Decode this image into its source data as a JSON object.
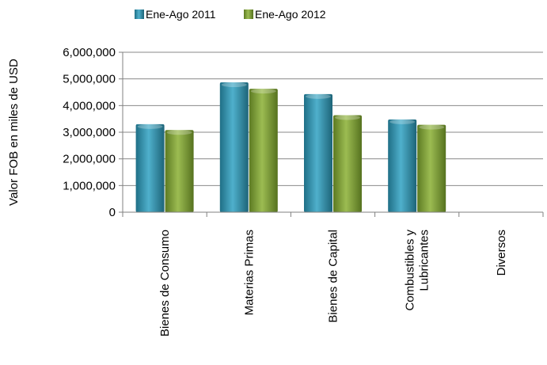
{
  "chart_data": {
    "type": "bar",
    "categories": [
      "Bienes de Consumo",
      "Materias Primas",
      "Bienes de Capital",
      "Combustibles y Lubricantes",
      "Diversos"
    ],
    "category_lines": [
      [
        "Bienes de Consumo"
      ],
      [
        "Materias Primas"
      ],
      [
        "Bienes de Capital"
      ],
      [
        "Combustibles y",
        "Lubricantes"
      ],
      [
        "Diversos"
      ]
    ],
    "series": [
      {
        "name": "Ene-Ago 2011",
        "values": [
          3300000,
          4870000,
          4430000,
          3480000,
          0
        ],
        "color": "#2e8aa6"
      },
      {
        "name": "Ene-Ago 2012",
        "values": [
          3080000,
          4630000,
          3640000,
          3280000,
          0
        ],
        "color": "#7a9a34"
      }
    ],
    "ylabel": "Valor FOB en miles de USD",
    "xlabel": "",
    "ylim": [
      0,
      6000000
    ],
    "yticks": [
      0,
      1000000,
      2000000,
      3000000,
      4000000,
      5000000,
      6000000
    ],
    "ytick_labels": [
      "0",
      "1,000,000",
      "2,000,000",
      "3,000,000",
      "4,000,000",
      "5,000,000",
      "6,000,000"
    ],
    "grid": true,
    "legend_position": "top"
  }
}
